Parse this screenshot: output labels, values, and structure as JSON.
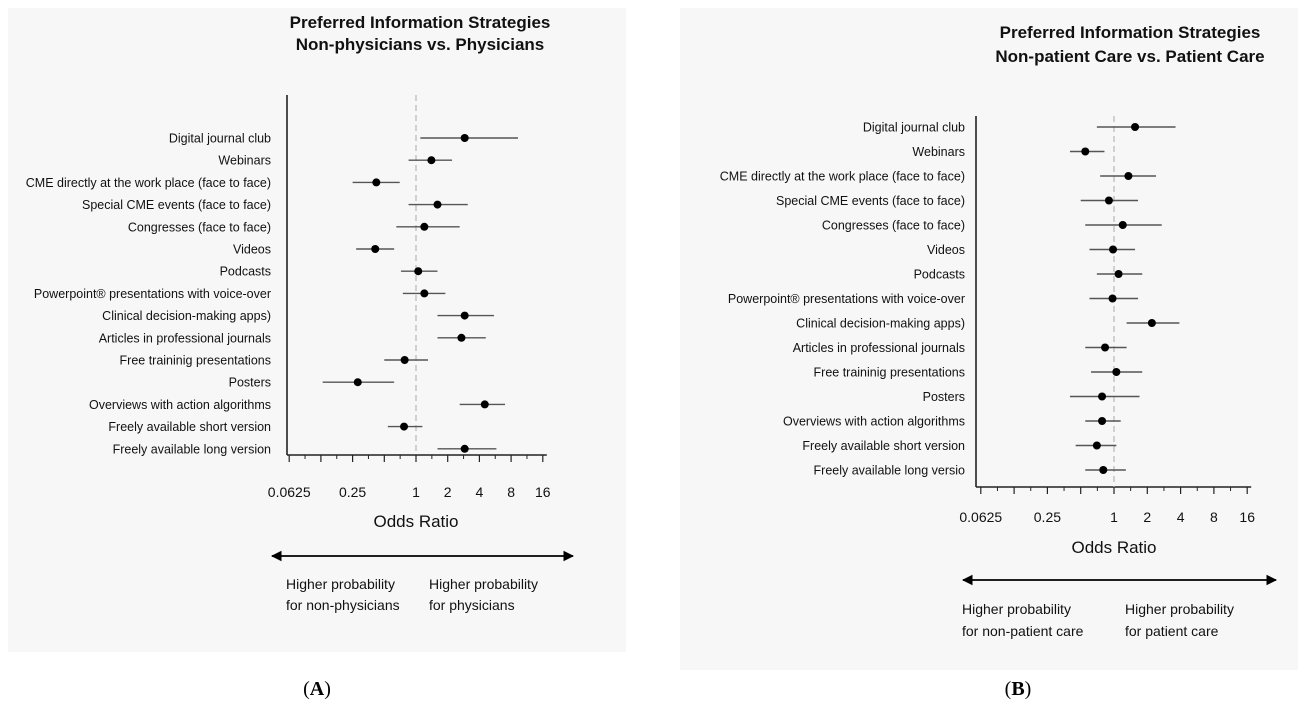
{
  "chart_data": [
    {
      "type": "scatter",
      "title": "Preferred Information Strategies",
      "subtitle": "Non-physicians vs. Physicians",
      "xlabel": "Odds Ratio",
      "xscale": "log2",
      "xlim": [
        0.0625,
        16
      ],
      "x_ticks": [
        "0.0625",
        "0.25",
        "1",
        "2",
        "4",
        "8",
        "16"
      ],
      "reference_line": 1,
      "panel_label": "A",
      "direction_left": [
        "Higher probability",
        "for non-physicians"
      ],
      "direction_right": [
        "Higher probability",
        "for physicians"
      ],
      "categories": [
        "Digital journal club",
        "Webinars",
        "CME directly at the work place (face to face)",
        "Special CME events (face to face)",
        "Congresses (face to face)",
        "Videos",
        "Podcasts",
        "Powerpoint® presentations with voice-over",
        "Clinical decision-making apps)",
        "Articles in professional journals",
        "Free traininig presentations",
        "Posters",
        "Overviews  with action algorithms",
        "Freely available short version",
        "Freely available long version"
      ],
      "estimate": [
        2.9,
        1.4,
        0.42,
        1.6,
        1.2,
        0.41,
        1.05,
        1.2,
        2.9,
        2.7,
        0.78,
        0.28,
        4.5,
        0.77,
        2.9
      ],
      "ci_low": [
        1.1,
        0.85,
        0.25,
        0.85,
        0.65,
        0.27,
        0.72,
        0.75,
        1.6,
        1.6,
        0.5,
        0.13,
        2.6,
        0.54,
        1.6
      ],
      "ci_high": [
        9.3,
        2.2,
        0.7,
        3.1,
        2.6,
        0.62,
        1.6,
        1.9,
        5.5,
        4.6,
        1.3,
        0.62,
        7.0,
        1.15,
        5.8
      ]
    },
    {
      "type": "scatter",
      "title": "Preferred Information Strategies",
      "subtitle": "Non-patient Care vs. Patient Care",
      "xlabel": "Odds Ratio",
      "xscale": "log2",
      "xlim": [
        0.0625,
        16
      ],
      "x_ticks": [
        "0.0625",
        "0.25",
        "1",
        "2",
        "4",
        "8",
        "16"
      ],
      "reference_line": 1,
      "panel_label": "B",
      "direction_left": [
        "Higher probability",
        "for non-patient care"
      ],
      "direction_right": [
        "Higher probability",
        "for patient care"
      ],
      "categories": [
        "Digital journal club",
        "Webinars",
        "CME directly at the work place (face to face)",
        "Special CME events (face to face)",
        "Congresses (face to face)",
        "Videos",
        "Podcasts",
        "Powerpoint® presentations with voice-over",
        "Clinical decision-making apps)",
        "Articles in professional journals",
        "Free  traininig presentations",
        "Posters",
        "Overviews with action algorithms",
        "Freely available short version",
        "Freely available long versio"
      ],
      "estimate": [
        1.55,
        0.55,
        1.35,
        0.9,
        1.2,
        0.98,
        1.1,
        0.97,
        2.2,
        0.83,
        1.05,
        0.78,
        0.78,
        0.7,
        0.8
      ],
      "ci_low": [
        0.7,
        0.4,
        0.75,
        0.5,
        0.55,
        0.6,
        0.7,
        0.6,
        1.3,
        0.55,
        0.62,
        0.4,
        0.55,
        0.45,
        0.55
      ],
      "ci_high": [
        3.6,
        0.82,
        2.4,
        1.65,
        2.7,
        1.55,
        1.8,
        1.65,
        3.9,
        1.3,
        1.8,
        1.7,
        1.15,
        1.05,
        1.28
      ]
    }
  ]
}
